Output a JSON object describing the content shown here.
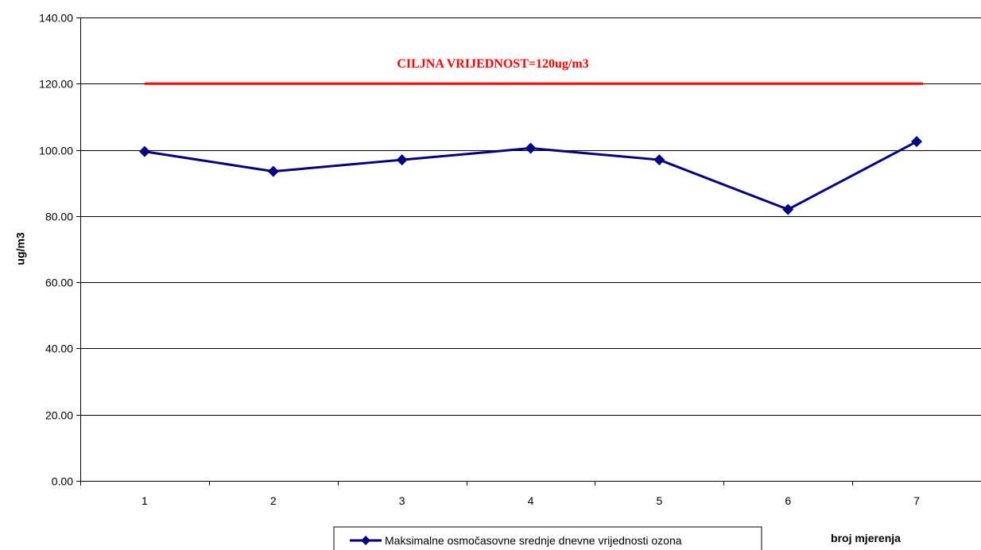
{
  "chart_data": {
    "type": "line",
    "title": "",
    "xlabel": "broj mjerenja",
    "ylabel": "ug/m3",
    "categories": [
      "1",
      "2",
      "3",
      "4",
      "5",
      "6",
      "7"
    ],
    "y_tick_labels": [
      "0.00",
      "20.00",
      "40.00",
      "60.00",
      "80.00",
      "100.00",
      "120.00",
      "140.00"
    ],
    "ylim": [
      0,
      140
    ],
    "ytick_step": 20,
    "grid": "horizontal",
    "legend_position": "bottom",
    "series": [
      {
        "name": "Maksimalne osmočasovne srednje dnevne vrijednosti ozona",
        "values": [
          99.5,
          93.5,
          97.0,
          100.5,
          97.0,
          82.0,
          102.5
        ],
        "color": "#000080",
        "marker": "diamond"
      }
    ],
    "reference_line": {
      "value": 120,
      "label": "CILJNA VRIJEDNOST=120ug/m3",
      "color": "#ff0000"
    }
  }
}
